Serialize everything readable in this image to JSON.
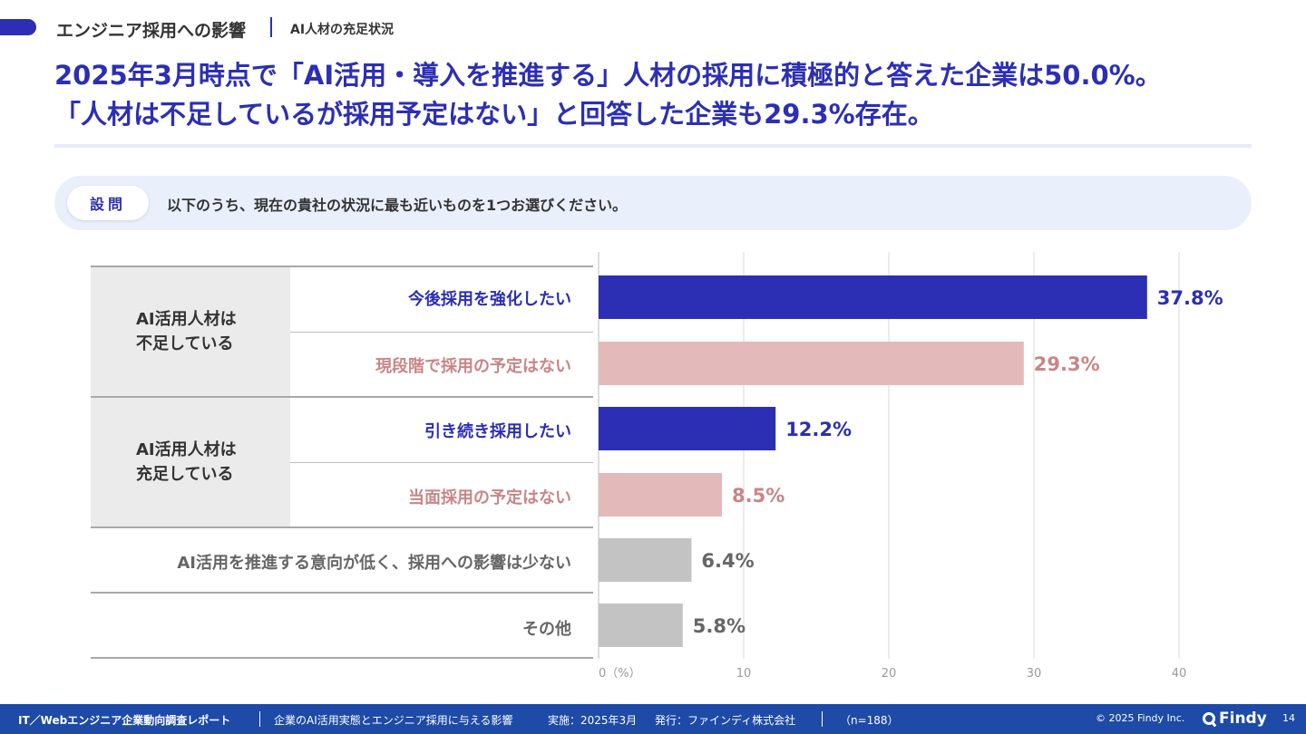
{
  "header": {
    "section_title": "エンジニア採用への影響",
    "section_subtitle": "AI人材の充足状況"
  },
  "headline": {
    "line1": "2025年3月時点で「AI活用・導入を推進する」人材の採用に積極的と答えた企業は50.0%。",
    "line2": "「人材は不足しているが採用予定はない」と回答した企業も29.3%存在。"
  },
  "question": {
    "badge": "設問",
    "text": "以下のうち、現在の貴社の状況に最も近いものを1つお選びください。"
  },
  "groups": [
    {
      "label": "AI活用人材は\n不足している"
    },
    {
      "label": "AI活用人材は\n充足している"
    }
  ],
  "colors": {
    "accent": "#2c2fb3",
    "pink_bar": "#e4b9b9",
    "pink_label": "#c98586",
    "gray_bar": "#c3c3c3",
    "gray_label": "#666666",
    "footer_bg": "#1e4aa8"
  },
  "chart_data": {
    "type": "bar",
    "orientation": "horizontal",
    "categories": [
      "今後採用を強化したい",
      "現段階で採用の予定はない",
      "引き続き採用したい",
      "当面採用の予定はない",
      "AI活用を推進する意向が低く、採用への影響は少ない",
      "その他"
    ],
    "values": [
      37.8,
      29.3,
      12.2,
      8.5,
      6.4,
      5.8
    ],
    "value_labels": [
      "37.8%",
      "29.3%",
      "12.2%",
      "8.5%",
      "6.4%",
      "5.8%"
    ],
    "bar_colors": [
      "#2c2fb3",
      "#e4b9b9",
      "#2c2fb3",
      "#e4b9b9",
      "#c3c3c3",
      "#c3c3c3"
    ],
    "label_colors": [
      "#2c2fb3",
      "#c98586",
      "#2c2fb3",
      "#c98586",
      "#666666",
      "#666666"
    ],
    "value_colors": [
      "#2c2fb3",
      "#c98586",
      "#2c2fb3",
      "#c98586",
      "#666666",
      "#666666"
    ],
    "x_ticks": [
      "0（%）",
      "10",
      "20",
      "30",
      "40"
    ],
    "x_tick_values": [
      0,
      10,
      20,
      30,
      40
    ],
    "xlim": [
      0,
      40
    ],
    "grid": true
  },
  "footer": {
    "report_title": "IT／Webエンジニア企業動向調査レポート",
    "report_subtitle": "企業のAI活用実態とエンジニア採用に与える影響",
    "date": "実施：2025年3月",
    "publisher": "発行：ファインディ株式会社",
    "sample": "（n=188）",
    "copyright": "© 2025 Findy Inc.",
    "brand": "Findy",
    "page_number": "14"
  }
}
